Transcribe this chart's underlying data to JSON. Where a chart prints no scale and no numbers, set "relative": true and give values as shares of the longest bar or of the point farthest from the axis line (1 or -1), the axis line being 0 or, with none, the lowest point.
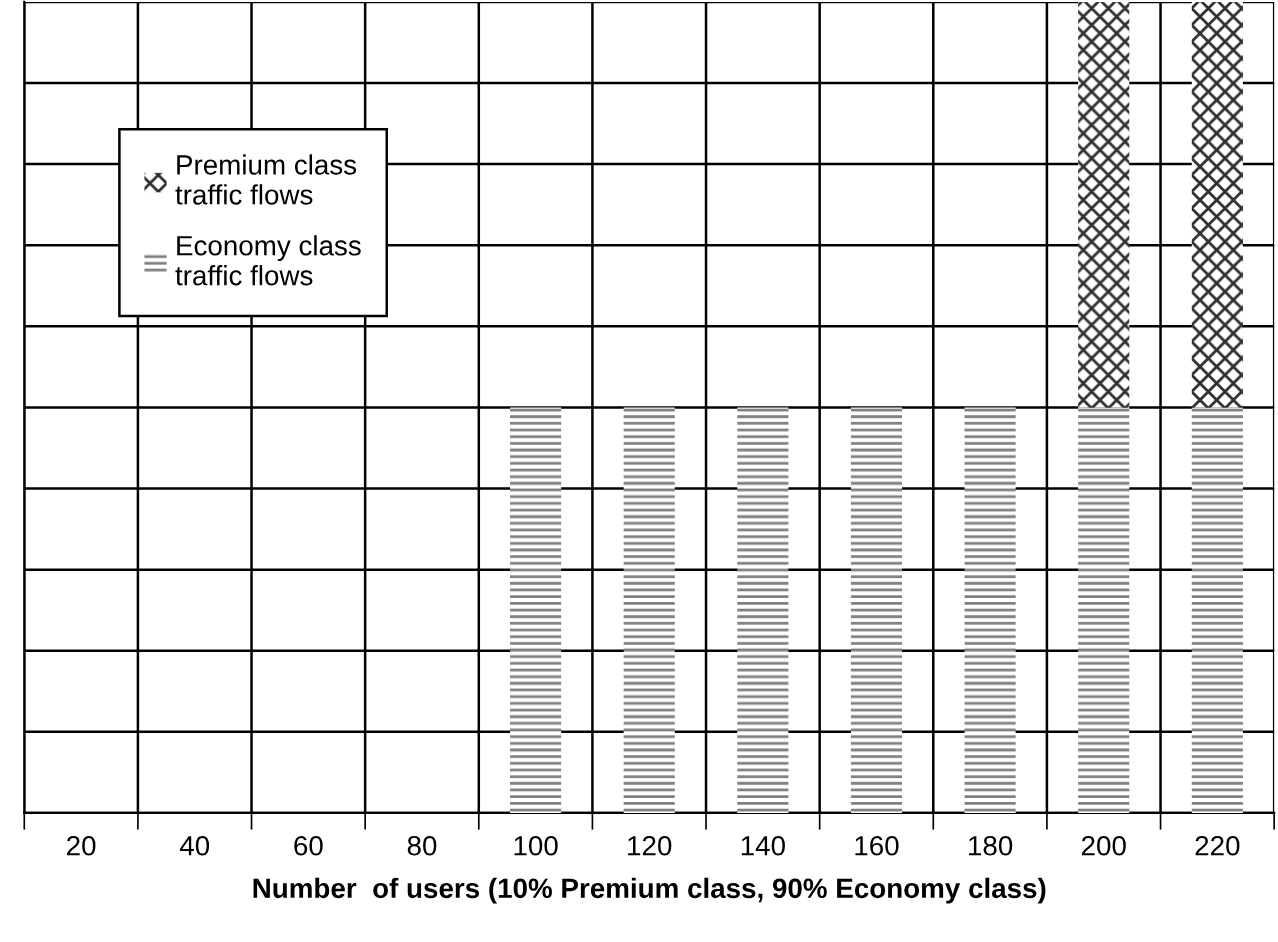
{
  "chart_data": {
    "type": "bar",
    "xlabel": "Number  of users (10% Premium class, 90% Economy class)",
    "categories": [
      "20",
      "40",
      "60",
      "80",
      "100",
      "120",
      "140",
      "160",
      "180",
      "200",
      "220"
    ],
    "stacked": true,
    "relative": true,
    "grid": true,
    "legend": "top left",
    "series": [
      {
        "name": "Economy class\ntraffic flows",
        "color": "#808080",
        "values": [
          0,
          0,
          0,
          0,
          0.5,
          0.5,
          0.5,
          0.5,
          0.5,
          0.5,
          0.5
        ]
      },
      {
        "name": "Premium class\ntraffic flows",
        "color": "#303030",
        "values": [
          0,
          0,
          0,
          0,
          0,
          0,
          0,
          0,
          0,
          0.5,
          0.5
        ]
      }
    ]
  }
}
